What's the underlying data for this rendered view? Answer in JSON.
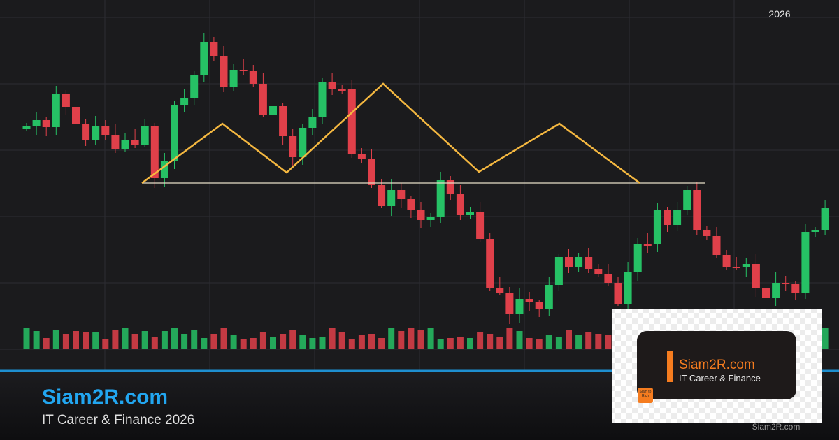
{
  "header": {
    "year": "2026"
  },
  "footer": {
    "brand": "Siam2R.com",
    "tagline": "IT Career & Finance 2026"
  },
  "logo": {
    "brand": "Siam2R.com",
    "tagline": "IT Career & Finance",
    "badge": "Siam to Rich",
    "watermark": "Siam2R.com"
  }
}
